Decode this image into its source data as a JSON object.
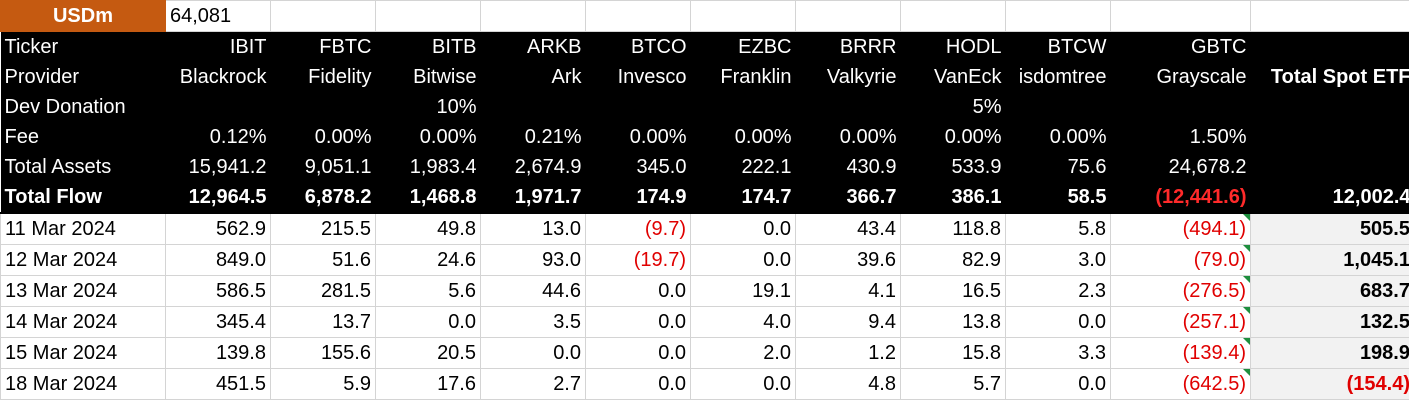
{
  "sheet": {
    "currency_label": "USDm",
    "currency_value": "64,081",
    "labels": {
      "ticker": "Ticker",
      "provider": "Provider",
      "dev_donation": "Dev Donation",
      "fee": "Fee",
      "total_assets": "Total Assets",
      "total_flow": "Total Flow",
      "total_spot_etf": "Total Spot ETF",
      "total_spot_flow": "12,002.4"
    },
    "etfs": [
      {
        "ticker": "IBIT",
        "provider": "Blackrock",
        "donation": "",
        "fee": "0.12%",
        "assets": "15,941.2",
        "flow": "12,964.5"
      },
      {
        "ticker": "FBTC",
        "provider": "Fidelity",
        "donation": "",
        "fee": "0.00%",
        "assets": "9,051.1",
        "flow": "6,878.2"
      },
      {
        "ticker": "BITB",
        "provider": "Bitwise",
        "donation": "10%",
        "fee": "0.00%",
        "assets": "1,983.4",
        "flow": "1,468.8"
      },
      {
        "ticker": "ARKB",
        "provider": "Ark",
        "donation": "",
        "fee": "0.21%",
        "assets": "2,674.9",
        "flow": "1,971.7"
      },
      {
        "ticker": "BTCO",
        "provider": "Invesco",
        "donation": "",
        "fee": "0.00%",
        "assets": "345.0",
        "flow": "174.9"
      },
      {
        "ticker": "EZBC",
        "provider": "Franklin",
        "donation": "",
        "fee": "0.00%",
        "assets": "222.1",
        "flow": "174.7"
      },
      {
        "ticker": "BRRR",
        "provider": "Valkyrie",
        "donation": "",
        "fee": "0.00%",
        "assets": "430.9",
        "flow": "366.7"
      },
      {
        "ticker": "HODL",
        "provider": "VanEck",
        "donation": "5%",
        "fee": "0.00%",
        "assets": "533.9",
        "flow": "386.1"
      },
      {
        "ticker": "BTCW",
        "provider": "isdomtree",
        "donation": "",
        "fee": "0.00%",
        "assets": "75.6",
        "flow": "58.5"
      },
      {
        "ticker": "GBTC",
        "provider": "Grayscale",
        "donation": "",
        "fee": "1.50%",
        "assets": "24,678.2",
        "flow": "(12,441.6)"
      }
    ],
    "rows": [
      {
        "date": "11 Mar 2024",
        "values": [
          "562.9",
          "215.5",
          "49.8",
          "13.0",
          "(9.7)",
          "0.0",
          "43.4",
          "118.8",
          "5.8",
          "(494.1)"
        ],
        "total": "505.5"
      },
      {
        "date": "12 Mar 2024",
        "values": [
          "849.0",
          "51.6",
          "24.6",
          "93.0",
          "(19.7)",
          "0.0",
          "39.6",
          "82.9",
          "3.0",
          "(79.0)"
        ],
        "total": "1,045.1"
      },
      {
        "date": "13 Mar 2024",
        "values": [
          "586.5",
          "281.5",
          "5.6",
          "44.6",
          "0.0",
          "19.1",
          "4.1",
          "16.5",
          "2.3",
          "(276.5)"
        ],
        "total": "683.7"
      },
      {
        "date": "14 Mar 2024",
        "values": [
          "345.4",
          "13.7",
          "0.0",
          "3.5",
          "0.0",
          "4.0",
          "9.4",
          "13.8",
          "0.0",
          "(257.1)"
        ],
        "total": "132.5"
      },
      {
        "date": "15 Mar 2024",
        "values": [
          "139.8",
          "155.6",
          "20.5",
          "0.0",
          "0.0",
          "2.0",
          "1.2",
          "15.8",
          "3.3",
          "(139.4)"
        ],
        "total": "198.9"
      },
      {
        "date": "18 Mar 2024",
        "values": [
          "451.5",
          "5.9",
          "17.6",
          "2.7",
          "0.0",
          "0.0",
          "4.8",
          "5.7",
          "0.0",
          "(642.5)"
        ],
        "total": "(154.4)"
      }
    ]
  }
}
